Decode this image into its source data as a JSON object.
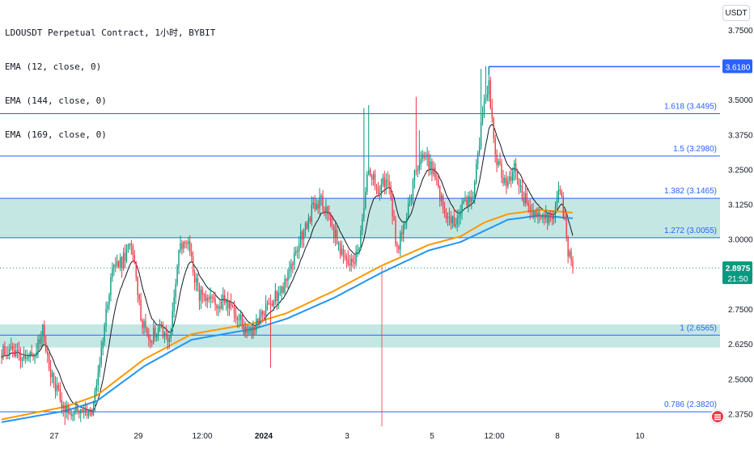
{
  "legend": {
    "title": "LDOUSDT Perpetual Contract, 1小时, BYBIT",
    "ema1": "EMA (12, close, 0)",
    "ema2": "EMA (144, close, 0)",
    "ema3": "EMA (169, close, 0)"
  },
  "currency_button": "USDT",
  "colors": {
    "up": "#089981",
    "down": "#f23645",
    "ema12": "#131722",
    "ema144": "#2196f3",
    "ema169": "#ff9800",
    "fib_line": "#2962ff",
    "zone_fill": "#b2dfdb",
    "price_label": "#089981",
    "high_label": "#2962ff"
  },
  "chart_data": {
    "type": "candlestick",
    "symbol": "LDOUSDT",
    "interval": "1h",
    "y_axis": {
      "ylim": [
        2.33,
        3.79
      ],
      "ticks": [
        "3.7500",
        "3.6180",
        "3.5000",
        "3.3750",
        "3.2500",
        "3.1250",
        "3.0000",
        "2.8750",
        "2.7500",
        "2.6250",
        "2.5000",
        "2.3750"
      ]
    },
    "x_axis": {
      "ticks": [
        "27",
        "29",
        "12:00",
        "2024",
        "3",
        "5",
        "12:00",
        "8",
        "10"
      ]
    },
    "fib_levels": [
      {
        "ratio": "1.618",
        "price": 3.4495,
        "label": "1.618 (3.4495)"
      },
      {
        "ratio": "1.5",
        "price": 3.298,
        "label": "1.5 (3.2980)"
      },
      {
        "ratio": "1.382",
        "price": 3.1465,
        "label": "1.382 (3.1465)"
      },
      {
        "ratio": "1.272",
        "price": 3.0055,
        "label": "1.272 (3.0055)"
      },
      {
        "ratio": "1",
        "price": 2.6565,
        "label": "1 (2.6565)"
      },
      {
        "ratio": "0.786",
        "price": 2.382,
        "label": "0.786 (2.3820)"
      }
    ],
    "zones": [
      {
        "top": 3.1465,
        "bottom": 3.0055
      },
      {
        "top": 2.695,
        "bottom": 2.612
      }
    ],
    "high_line": {
      "price": 3.618,
      "label": "3.6180"
    },
    "current_price": {
      "price": "2.8975",
      "time": "21:50",
      "value": 2.8975
    },
    "key_points": [
      {
        "t": 0,
        "p": 2.6
      },
      {
        "t": 8,
        "p": 2.595
      },
      {
        "t": 16,
        "p": 2.585
      },
      {
        "t": 22,
        "p": 2.6
      },
      {
        "t": 26,
        "p": 2.67
      },
      {
        "t": 32,
        "p": 2.5
      },
      {
        "t": 40,
        "p": 2.395
      },
      {
        "t": 46,
        "p": 2.385
      },
      {
        "t": 52,
        "p": 2.37
      },
      {
        "t": 58,
        "p": 2.39
      },
      {
        "t": 64,
        "p": 2.65
      },
      {
        "t": 70,
        "p": 2.9
      },
      {
        "t": 76,
        "p": 2.915
      },
      {
        "t": 82,
        "p": 2.99
      },
      {
        "t": 88,
        "p": 2.72
      },
      {
        "t": 94,
        "p": 2.64
      },
      {
        "t": 100,
        "p": 2.7
      },
      {
        "t": 106,
        "p": 2.63
      },
      {
        "t": 112,
        "p": 2.96
      },
      {
        "t": 118,
        "p": 2.99
      },
      {
        "t": 124,
        "p": 2.81
      },
      {
        "t": 130,
        "p": 2.77
      },
      {
        "t": 136,
        "p": 2.77
      },
      {
        "t": 142,
        "p": 2.78
      },
      {
        "t": 148,
        "p": 2.74
      },
      {
        "t": 154,
        "p": 2.67
      },
      {
        "t": 160,
        "p": 2.68
      },
      {
        "t": 166,
        "p": 2.74
      },
      {
        "t": 172,
        "p": 2.79
      },
      {
        "t": 178,
        "p": 2.83
      },
      {
        "t": 184,
        "p": 2.92
      },
      {
        "t": 190,
        "p": 3.02
      },
      {
        "t": 196,
        "p": 3.1
      },
      {
        "t": 202,
        "p": 3.14
      },
      {
        "t": 208,
        "p": 3.06
      },
      {
        "t": 214,
        "p": 2.96
      },
      {
        "t": 220,
        "p": 2.9
      },
      {
        "t": 226,
        "p": 2.96
      },
      {
        "t": 232,
        "p": 3.26
      },
      {
        "t": 238,
        "p": 3.18
      },
      {
        "t": 244,
        "p": 3.22
      },
      {
        "t": 250,
        "p": 2.96
      },
      {
        "t": 256,
        "p": 3.08
      },
      {
        "t": 262,
        "p": 3.25
      },
      {
        "t": 268,
        "p": 3.3
      },
      {
        "t": 274,
        "p": 3.22
      },
      {
        "t": 280,
        "p": 3.1
      },
      {
        "t": 286,
        "p": 3.05
      },
      {
        "t": 292,
        "p": 3.12
      },
      {
        "t": 298,
        "p": 3.15
      },
      {
        "t": 304,
        "p": 3.45
      },
      {
        "t": 308,
        "p": 3.56
      },
      {
        "t": 312,
        "p": 3.3
      },
      {
        "t": 318,
        "p": 3.2
      },
      {
        "t": 324,
        "p": 3.25
      },
      {
        "t": 330,
        "p": 3.15
      },
      {
        "t": 336,
        "p": 3.09
      },
      {
        "t": 342,
        "p": 3.1
      },
      {
        "t": 348,
        "p": 3.05
      },
      {
        "t": 352,
        "p": 3.19
      },
      {
        "t": 355,
        "p": 3.1
      },
      {
        "t": 358,
        "p": 2.95
      },
      {
        "t": 361,
        "p": 2.8975
      }
    ],
    "ema144": [
      {
        "t": 0,
        "p": 2.345
      },
      {
        "t": 40,
        "p": 2.385
      },
      {
        "t": 60,
        "p": 2.42
      },
      {
        "t": 90,
        "p": 2.545
      },
      {
        "t": 120,
        "p": 2.64
      },
      {
        "t": 160,
        "p": 2.68
      },
      {
        "t": 180,
        "p": 2.715
      },
      {
        "t": 210,
        "p": 2.79
      },
      {
        "t": 240,
        "p": 2.88
      },
      {
        "t": 270,
        "p": 2.96
      },
      {
        "t": 290,
        "p": 2.99
      },
      {
        "t": 305,
        "p": 3.03
      },
      {
        "t": 320,
        "p": 3.07
      },
      {
        "t": 340,
        "p": 3.085
      },
      {
        "t": 361,
        "p": 3.075
      }
    ],
    "ema169": [
      {
        "t": 0,
        "p": 2.355
      },
      {
        "t": 40,
        "p": 2.4
      },
      {
        "t": 60,
        "p": 2.44
      },
      {
        "t": 90,
        "p": 2.57
      },
      {
        "t": 120,
        "p": 2.66
      },
      {
        "t": 160,
        "p": 2.7
      },
      {
        "t": 180,
        "p": 2.735
      },
      {
        "t": 210,
        "p": 2.815
      },
      {
        "t": 240,
        "p": 2.905
      },
      {
        "t": 270,
        "p": 2.98
      },
      {
        "t": 290,
        "p": 3.01
      },
      {
        "t": 305,
        "p": 3.06
      },
      {
        "t": 320,
        "p": 3.09
      },
      {
        "t": 340,
        "p": 3.105
      },
      {
        "t": 361,
        "p": 3.095
      }
    ]
  }
}
